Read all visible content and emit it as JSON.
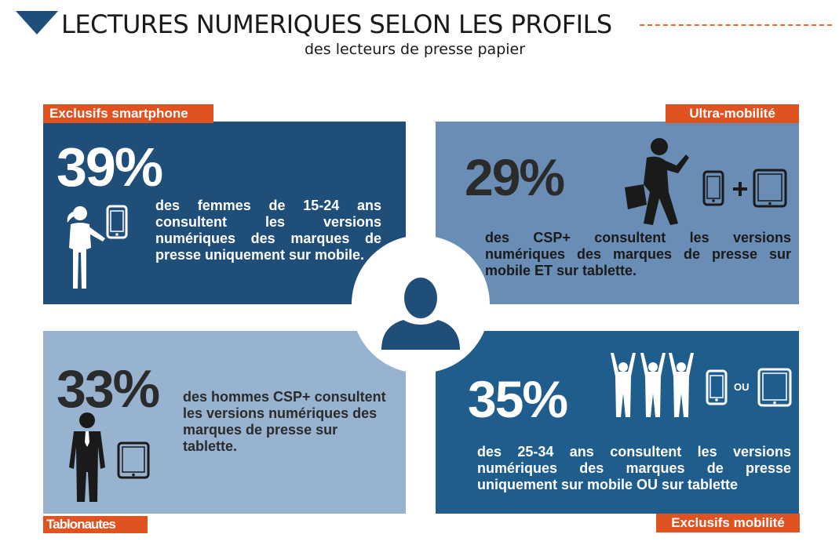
{
  "header": {
    "title": "LECTURES NUMERIQUES SELON LES PROFILS",
    "subtitle": "des lecteurs de presse papier"
  },
  "panels": {
    "top_left": {
      "tag": "Exclusifs smartphone",
      "percent": "39%",
      "text": "des femmes de 15-24 ans consultent les versions numériques des marques de presse uniquement sur mobile."
    },
    "top_right": {
      "tag": "Ultra-mobilité",
      "percent": "29%",
      "text": "des CSP+ consultent les versions numériques des marques de presse sur mobile ET sur tablette."
    },
    "bottom_left": {
      "tag": "Tablonautes",
      "percent": "33%",
      "text": "des hommes CSP+ consultent les versions numériques des marques de presse sur tablette."
    },
    "bottom_right": {
      "tag": "Exclusifs mobilité",
      "percent": "35%",
      "text": "des 25-34 ans consultent les versions numériques des marques de presse uniquement sur mobile OU sur tablette",
      "connector": "OU"
    }
  },
  "colors": {
    "dark_blue": "#1f4e79",
    "mid_blue": "#6a8db5",
    "light_blue": "#98b3cf",
    "blue": "#1f5d8c",
    "orange": "#e0521f"
  },
  "icons": [
    "header-triangle-icon",
    "woman-icon",
    "smartphone-icon",
    "walking-businessman-icon",
    "tablet-icon",
    "plus-icon",
    "businessman-icon",
    "cheering-people-icon",
    "user-silhouette-icon"
  ]
}
